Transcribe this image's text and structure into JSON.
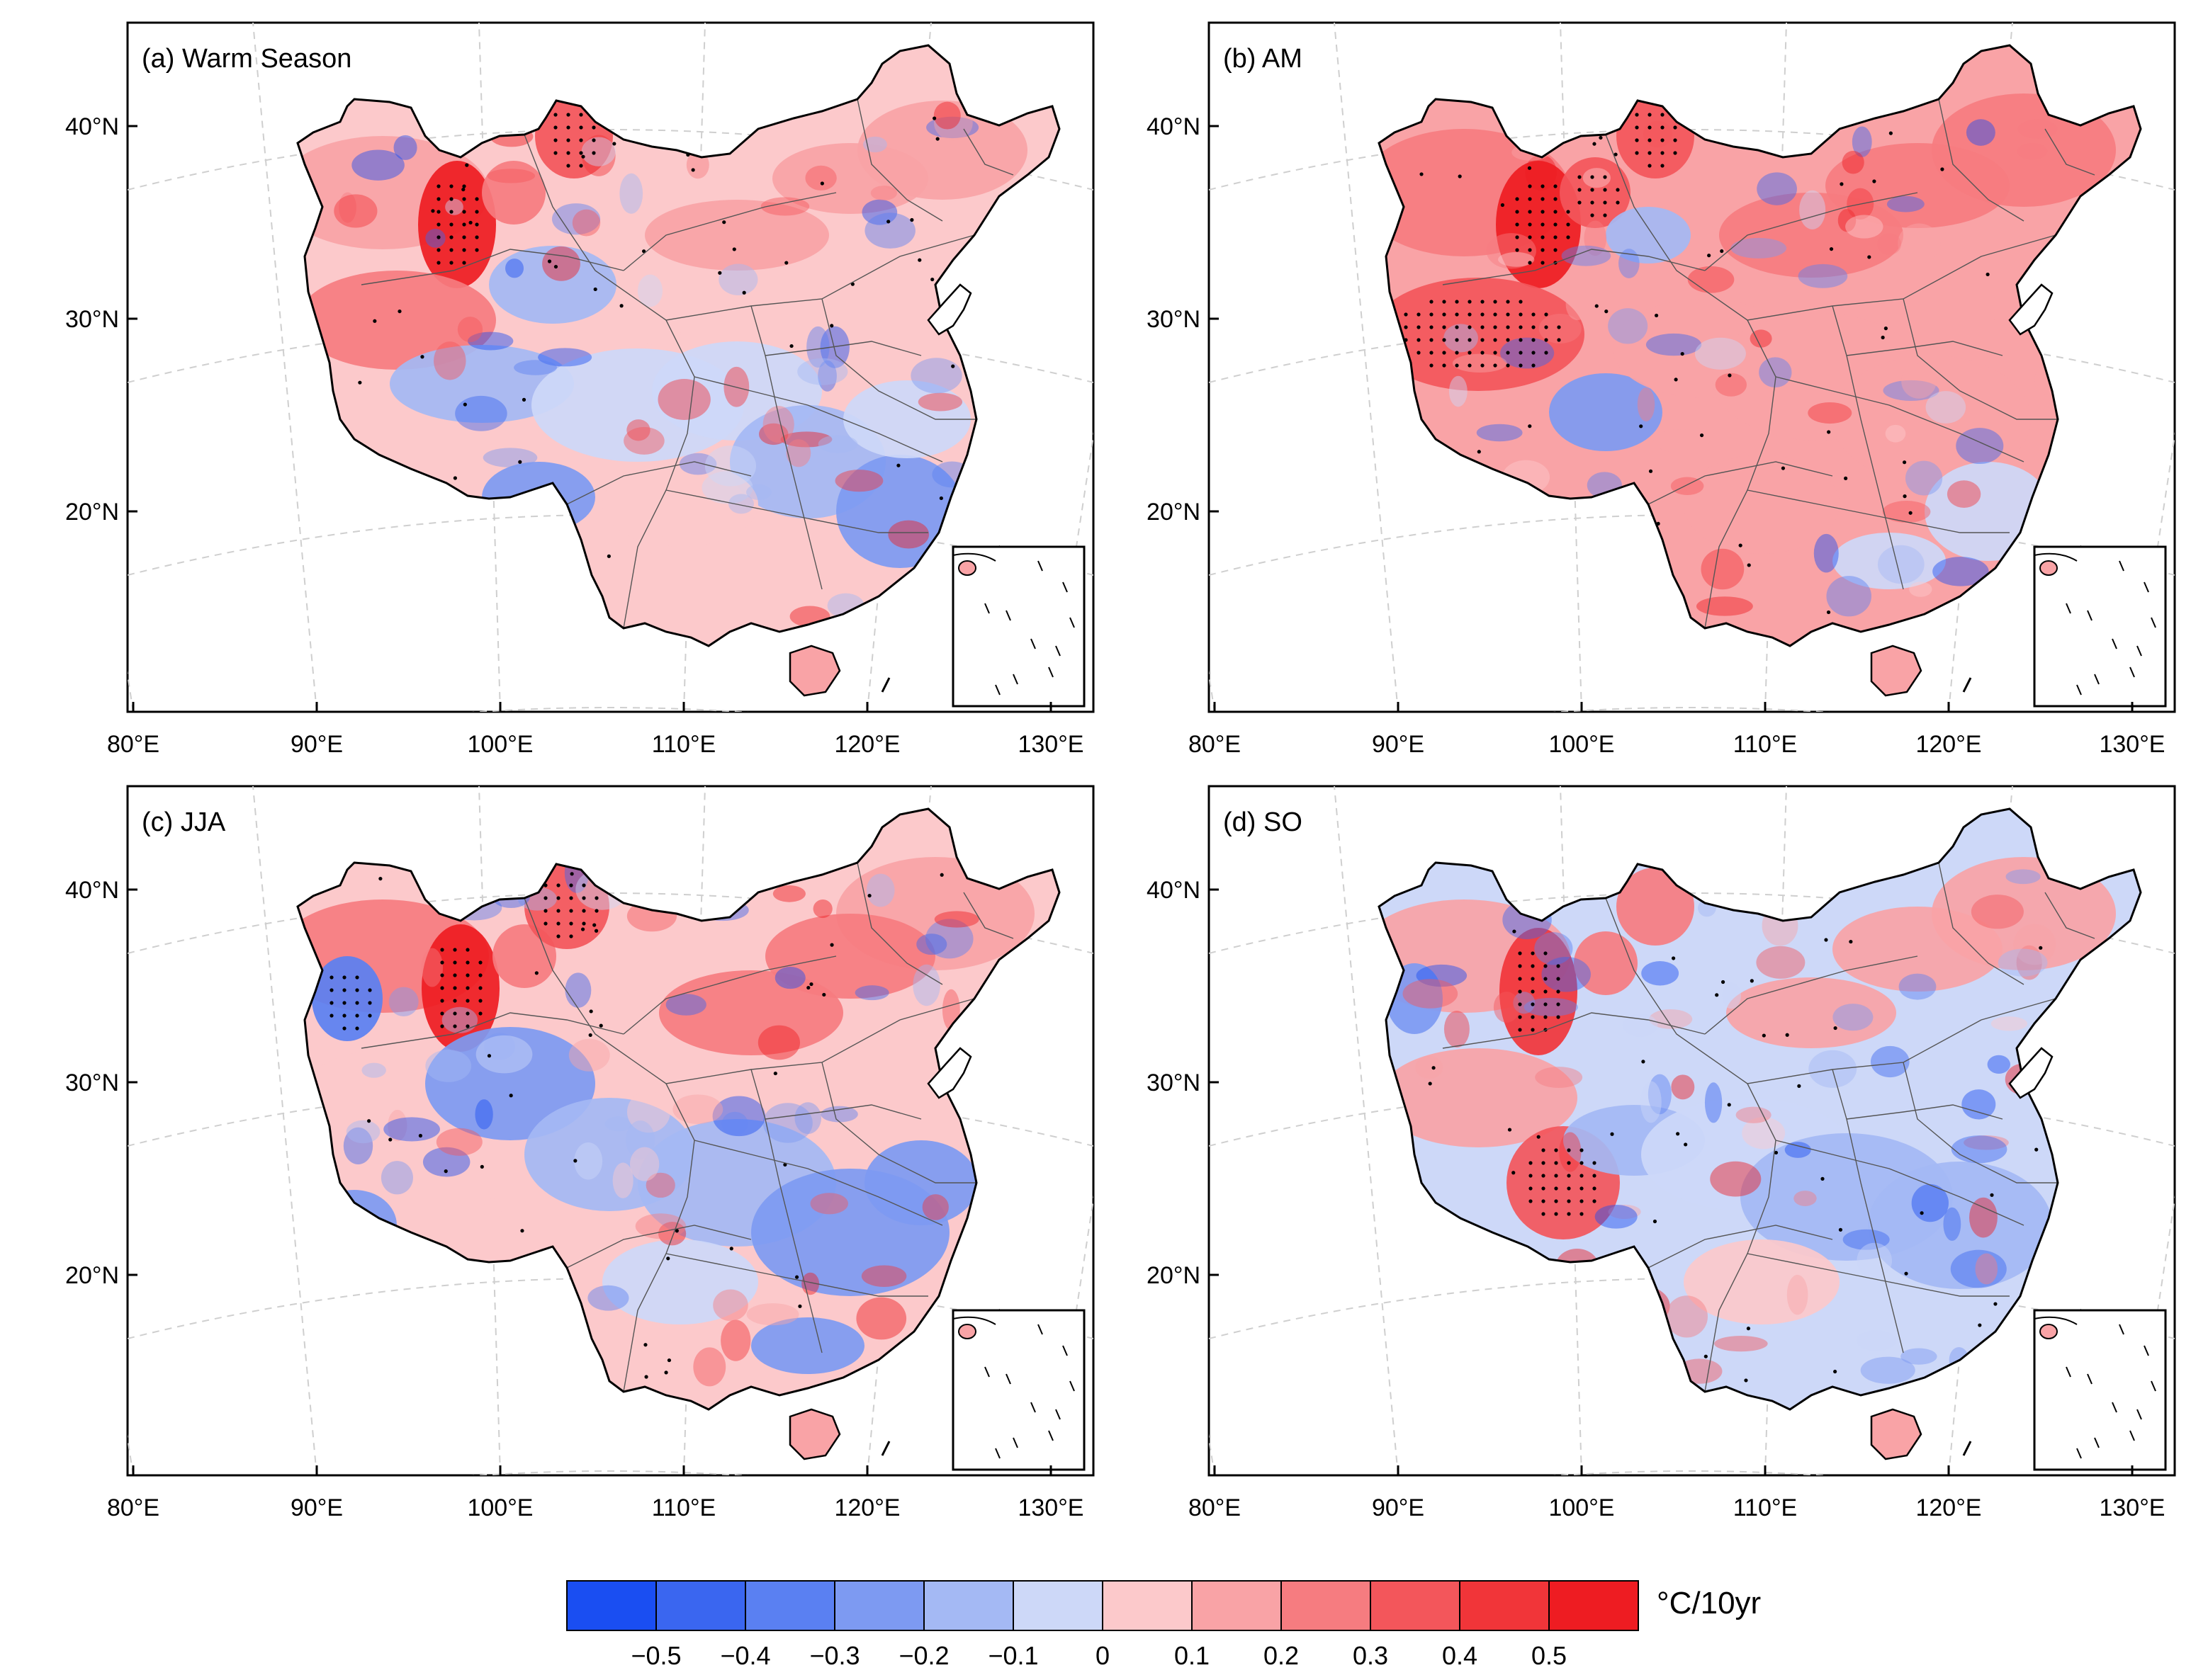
{
  "figure": {
    "panels": [
      {
        "id": "a",
        "label": "(a) Warm Season",
        "profile": 0
      },
      {
        "id": "b",
        "label": "(b) AM",
        "profile": 1
      },
      {
        "id": "c",
        "label": "(c) JJA",
        "profile": 2
      },
      {
        "id": "d",
        "label": "(d) SO",
        "profile": 3
      }
    ],
    "lat_ticks": [
      {
        "value": 40,
        "label": "40°N"
      },
      {
        "value": 30,
        "label": "30°N"
      },
      {
        "value": 20,
        "label": "20°N"
      }
    ],
    "lon_ticks": [
      {
        "value": 80,
        "label": "80°E"
      },
      {
        "value": 90,
        "label": "90°E"
      },
      {
        "value": 100,
        "label": "100°E"
      },
      {
        "value": 110,
        "label": "110°E"
      },
      {
        "value": 120,
        "label": "120°E"
      },
      {
        "value": 130,
        "label": "130°E"
      }
    ],
    "colorbar": {
      "unit": "°C/10yr",
      "labels": [
        "−0.5",
        "−0.4",
        "−0.3",
        "−0.2",
        "−0.1",
        "0",
        "0.1",
        "0.2",
        "0.3",
        "0.4",
        "0.5"
      ],
      "colors": [
        "#1a4ef2",
        "#3a66f0",
        "#5a80f2",
        "#7d9af2",
        "#a4b9f4",
        "#cdd8f8",
        "#fcc9cb",
        "#f9a3a6",
        "#f67c80",
        "#f3565b",
        "#f13539",
        "#ee1c22"
      ]
    }
  }
}
